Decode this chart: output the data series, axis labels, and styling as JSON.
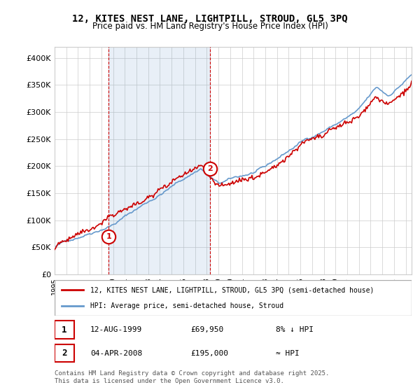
{
  "title": "12, KITES NEST LANE, LIGHTPILL, STROUD, GL5 3PQ",
  "subtitle": "Price paid vs. HM Land Registry's House Price Index (HPI)",
  "ylabel": "",
  "xlabel": "",
  "ylim": [
    0,
    420000
  ],
  "xlim_start": 1995.0,
  "xlim_end": 2025.5,
  "sale1_year": 1999.617,
  "sale1_price": 69950,
  "sale2_year": 2008.253,
  "sale2_price": 195000,
  "hpi_color": "#6699cc",
  "price_color": "#cc0000",
  "dashed_color": "#cc0000",
  "background_color": "#ffffff",
  "grid_color": "#cccccc",
  "legend_line1": "12, KITES NEST LANE, LIGHTPILL, STROUD, GL5 3PQ (semi-detached house)",
  "legend_line2": "HPI: Average price, semi-detached house, Stroud",
  "info1_label": "1",
  "info1_date": "12-AUG-1999",
  "info1_price": "£69,950",
  "info1_hpi": "8% ↓ HPI",
  "info2_label": "2",
  "info2_date": "04-APR-2008",
  "info2_price": "£195,000",
  "info2_hpi": "≈ HPI",
  "footer": "Contains HM Land Registry data © Crown copyright and database right 2025.\nThis data is licensed under the Open Government Licence v3.0."
}
